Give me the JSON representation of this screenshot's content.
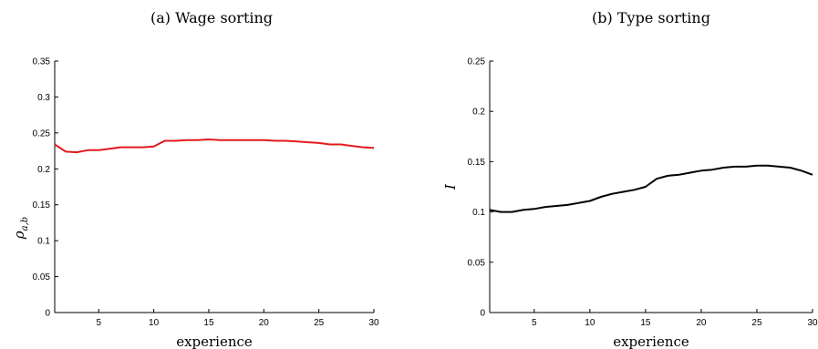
{
  "chart_data": [
    {
      "type": "line",
      "title": "(a) Wage sorting",
      "xlabel": "experience",
      "ylabel_main": "ρ",
      "ylabel_sub": "a,b",
      "xlim": [
        1,
        30
      ],
      "ylim": [
        0,
        0.35
      ],
      "xticks": [
        5,
        10,
        15,
        20,
        25,
        30
      ],
      "xtick_labels": [
        "5",
        "10",
        "15",
        "20",
        "25",
        "30"
      ],
      "yticks": [
        0,
        0.05,
        0.1,
        0.15,
        0.2,
        0.25,
        0.3,
        0.35
      ],
      "ytick_labels": [
        "0",
        "0.05",
        "0.1",
        "0.15",
        "0.2",
        "0.25",
        "0.3",
        "0.35"
      ],
      "grid": false,
      "series": [
        {
          "color": "#e31a1c",
          "x": [
            1,
            2,
            3,
            4,
            5,
            6,
            7,
            8,
            9,
            10,
            11,
            12,
            13,
            14,
            15,
            16,
            17,
            18,
            19,
            20,
            21,
            22,
            23,
            24,
            25,
            26,
            27,
            28,
            29,
            30
          ],
          "y": [
            0.234,
            0.224,
            0.223,
            0.226,
            0.226,
            0.228,
            0.23,
            0.23,
            0.23,
            0.231,
            0.239,
            0.239,
            0.24,
            0.24,
            0.241,
            0.24,
            0.24,
            0.24,
            0.24,
            0.24,
            0.239,
            0.239,
            0.238,
            0.237,
            0.236,
            0.234,
            0.234,
            0.232,
            0.23,
            0.229
          ]
        }
      ]
    },
    {
      "type": "line",
      "title": "(b) Type sorting",
      "xlabel": "experience",
      "ylabel_main": "I",
      "ylabel_sub": "",
      "xlim": [
        1,
        30
      ],
      "ylim": [
        0,
        0.25
      ],
      "xticks": [
        5,
        10,
        15,
        20,
        25,
        30
      ],
      "xtick_labels": [
        "5",
        "10",
        "15",
        "20",
        "25",
        "30"
      ],
      "yticks": [
        0,
        0.05,
        0.1,
        0.15,
        0.2,
        0.25
      ],
      "ytick_labels": [
        "0",
        "0.05",
        "0.1",
        "0.15",
        "0.2",
        "0.25"
      ],
      "grid": false,
      "series": [
        {
          "color": "#000000",
          "x": [
            1,
            2,
            3,
            4,
            5,
            6,
            7,
            8,
            9,
            10,
            11,
            12,
            13,
            14,
            15,
            16,
            17,
            18,
            19,
            20,
            21,
            22,
            23,
            24,
            25,
            26,
            27,
            28,
            29,
            30
          ],
          "y": [
            0.102,
            0.1,
            0.1,
            0.102,
            0.103,
            0.105,
            0.106,
            0.107,
            0.109,
            0.111,
            0.115,
            0.118,
            0.12,
            0.122,
            0.125,
            0.133,
            0.136,
            0.137,
            0.139,
            0.141,
            0.142,
            0.144,
            0.145,
            0.145,
            0.146,
            0.146,
            0.145,
            0.144,
            0.141,
            0.137
          ]
        }
      ]
    }
  ]
}
